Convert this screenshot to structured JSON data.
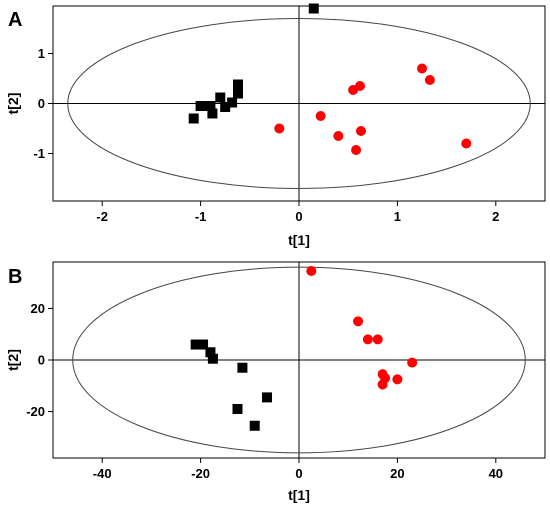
{
  "colors": {
    "group1": "#000000",
    "group2": "#ff0000",
    "frame": "#000000",
    "ellipse": "#444444"
  },
  "chart_data": [
    {
      "type": "scatter",
      "panel_label": "A",
      "xlabel": "t[1]",
      "ylabel": "t[2]",
      "xlim": [
        -2.5,
        2.5
      ],
      "ylim": [
        -1.95,
        1.95
      ],
      "xticks": [
        -2,
        -1,
        0,
        1,
        2
      ],
      "yticks": [
        -1,
        0,
        1
      ],
      "ellipse": {
        "rx": 2.35,
        "ry": 1.7
      },
      "series": [
        {
          "marker": "square",
          "color": "#000000",
          "points": [
            [
              0.15,
              1.9
            ],
            [
              -1.07,
              -0.3
            ],
            [
              -1.0,
              -0.05
            ],
            [
              -0.9,
              -0.05
            ],
            [
              -0.88,
              -0.2
            ],
            [
              -0.8,
              0.12
            ],
            [
              -0.75,
              -0.07
            ],
            [
              -0.68,
              0.02
            ],
            [
              -0.62,
              0.2
            ],
            [
              -0.62,
              0.38
            ]
          ]
        },
        {
          "marker": "circle",
          "color": "#ff0000",
          "points": [
            [
              -0.2,
              -0.5
            ],
            [
              0.22,
              -0.25
            ],
            [
              0.4,
              -0.65
            ],
            [
              0.55,
              0.27
            ],
            [
              0.58,
              -0.93
            ],
            [
              0.62,
              0.35
            ],
            [
              0.63,
              -0.55
            ],
            [
              1.25,
              0.7
            ],
            [
              1.33,
              0.47
            ],
            [
              1.7,
              -0.8
            ]
          ]
        }
      ]
    },
    {
      "type": "scatter",
      "panel_label": "B",
      "xlabel": "t[1]",
      "ylabel": "t[2]",
      "xlim": [
        -50,
        50
      ],
      "ylim": [
        -38,
        38
      ],
      "xticks": [
        -40,
        -20,
        0,
        20,
        40
      ],
      "yticks": [
        -20,
        0,
        20
      ],
      "ellipse": {
        "rx": 46,
        "ry": 36
      },
      "series": [
        {
          "marker": "square",
          "color": "#000000",
          "points": [
            [
              -21,
              6
            ],
            [
              -19.5,
              6
            ],
            [
              -18,
              3
            ],
            [
              -17.5,
              0.5
            ],
            [
              -11.5,
              -3
            ],
            [
              -12.5,
              -19
            ],
            [
              -6.5,
              -14.5
            ],
            [
              -9,
              -25.5
            ]
          ]
        },
        {
          "marker": "circle",
          "color": "#ff0000",
          "points": [
            [
              2.5,
              34.5
            ],
            [
              12,
              15
            ],
            [
              14,
              8
            ],
            [
              16,
              8
            ],
            [
              17,
              -5.5
            ],
            [
              17.5,
              -7
            ],
            [
              17,
              -9.5
            ],
            [
              20,
              -7.5
            ],
            [
              23,
              -1
            ]
          ]
        }
      ]
    }
  ]
}
